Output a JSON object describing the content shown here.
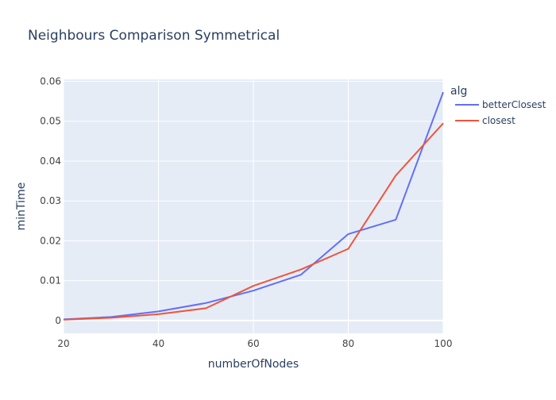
{
  "chart_data": {
    "type": "line",
    "title": "Neighbours Comparison Symmetrical",
    "xlabel": "numberOfNodes",
    "ylabel": "minTime",
    "xlim": [
      20,
      100
    ],
    "ylim": [
      -0.0032,
      0.0605
    ],
    "x_ticks": [
      20,
      40,
      60,
      80,
      100
    ],
    "y_ticks": [
      0,
      0.01,
      0.02,
      0.03,
      0.04,
      0.05,
      0.06
    ],
    "y_tick_labels": [
      "0",
      "0.01",
      "0.02",
      "0.03",
      "0.04",
      "0.05",
      "0.06"
    ],
    "grid": true,
    "legend": {
      "title": "alg",
      "position": "right"
    },
    "x": [
      20,
      30,
      40,
      50,
      60,
      70,
      80,
      90,
      100
    ],
    "series": [
      {
        "name": "betterClosest",
        "color": "#636efa",
        "values": [
          0.0003,
          0.0009,
          0.0023,
          0.0044,
          0.0075,
          0.0115,
          0.0217,
          0.0253,
          0.0573
        ]
      },
      {
        "name": "closest",
        "color": "#ef553b",
        "values": [
          0.0002,
          0.0007,
          0.0016,
          0.0031,
          0.0087,
          0.0128,
          0.018,
          0.0364,
          0.0495
        ]
      }
    ]
  },
  "colors": {
    "plot_bg": "#e5ecf6",
    "grid": "#ffffff",
    "text": "#2a3f5f",
    "tick_text": "#444444"
  }
}
